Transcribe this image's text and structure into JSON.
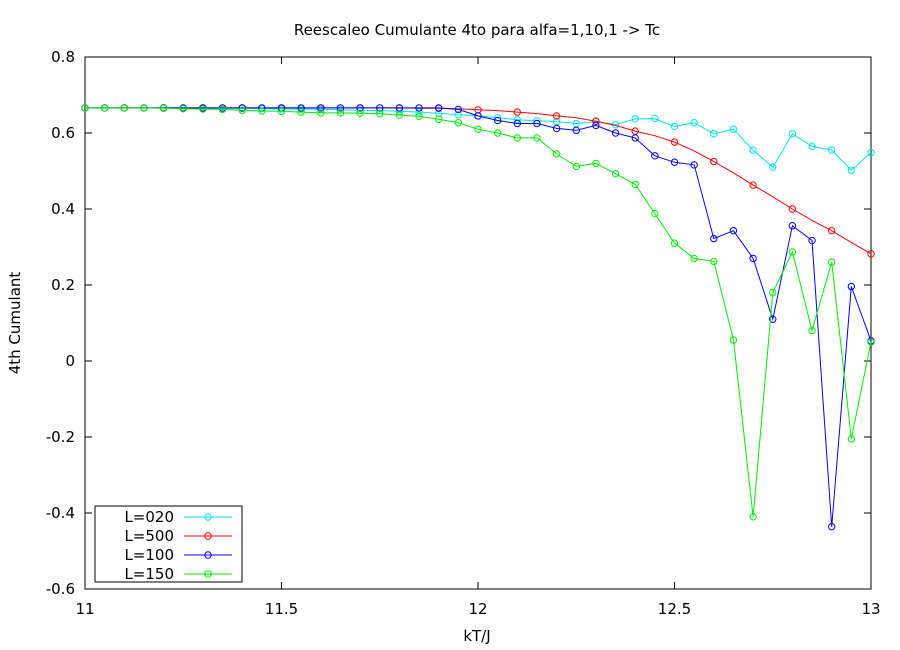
{
  "chart_data": {
    "type": "line",
    "title": "Reescaleo Cumulante 4to para alfa=1,10,1 -> Tc",
    "xlabel": "kT/J",
    "ylabel": "4th Cumulant",
    "xlim": [
      11,
      13
    ],
    "ylim": [
      -0.6,
      0.8
    ],
    "xticks": [
      "11",
      "11.5",
      "12",
      "12.5",
      "13"
    ],
    "yticks": [
      "0.8",
      "0.6",
      "0.4",
      "0.2",
      "0",
      "-0.2",
      "-0.4",
      "-0.6"
    ],
    "legend_position": "bottom-left",
    "x": [
      11.0,
      11.05,
      11.1,
      11.15,
      11.2,
      11.25,
      11.3,
      11.35,
      11.4,
      11.45,
      11.5,
      11.55,
      11.6,
      11.65,
      11.7,
      11.75,
      11.8,
      11.85,
      11.9,
      11.95,
      12.0,
      12.05,
      12.1,
      12.15,
      12.2,
      12.25,
      12.3,
      12.35,
      12.4,
      12.45,
      12.5,
      12.55,
      12.6,
      12.65,
      12.7,
      12.75,
      12.8,
      12.85,
      12.9,
      12.95,
      13.0
    ],
    "series": [
      {
        "name": "L=020",
        "color": "#00e5e5",
        "values": [
          0.666,
          0.666,
          0.666,
          0.666,
          0.666,
          0.666,
          0.665,
          0.665,
          0.665,
          0.664,
          0.663,
          0.663,
          0.662,
          0.661,
          0.66,
          0.659,
          0.657,
          0.655,
          0.652,
          0.648,
          0.645,
          0.64,
          0.635,
          0.632,
          0.63,
          0.625,
          0.63,
          0.622,
          0.637,
          0.638,
          0.617,
          0.627,
          0.598,
          0.61,
          0.555,
          0.51,
          0.598,
          0.565,
          0.555,
          0.502,
          0.548
        ],
        "sample_every": 1
      },
      {
        "name": "L=500",
        "color": "#ff0000",
        "values": [
          0.666,
          0.666,
          0.666,
          0.666,
          0.666,
          0.666,
          0.666,
          0.666,
          0.666,
          0.666,
          0.666,
          0.666,
          0.666,
          0.666,
          0.666,
          0.666,
          0.666,
          0.665,
          0.665,
          0.664,
          0.661,
          0.659,
          0.655,
          0.651,
          0.645,
          0.64,
          0.631,
          0.62,
          0.605,
          0.593,
          0.576,
          0.553,
          0.525,
          0.495,
          0.463,
          0.432,
          0.4,
          0.37,
          0.343,
          0.312,
          0.282
        ],
        "sample_every": 2
      },
      {
        "name": "L=100",
        "color": "#0000ff",
        "values": [
          0.666,
          0.666,
          0.666,
          0.666,
          0.666,
          0.666,
          0.666,
          0.666,
          0.666,
          0.666,
          0.666,
          0.666,
          0.666,
          0.666,
          0.666,
          0.666,
          0.666,
          0.666,
          0.666,
          0.662,
          0.645,
          0.633,
          0.625,
          0.625,
          0.612,
          0.607,
          0.62,
          0.6,
          0.587,
          0.54,
          0.523,
          0.516,
          0.322,
          0.343,
          0.27,
          0.11,
          0.356,
          0.317,
          -0.436,
          0.196,
          0.053
        ],
        "sample_every": 1
      },
      {
        "name": "L=150",
        "color": "#00ee00",
        "values": [
          0.666,
          0.666,
          0.666,
          0.666,
          0.665,
          0.664,
          0.663,
          0.662,
          0.66,
          0.658,
          0.657,
          0.655,
          0.653,
          0.653,
          0.652,
          0.651,
          0.647,
          0.644,
          0.636,
          0.627,
          0.61,
          0.6,
          0.587,
          0.587,
          0.545,
          0.512,
          0.52,
          0.493,
          0.465,
          0.388,
          0.31,
          0.27,
          0.262,
          0.055,
          -0.41,
          0.18,
          0.287,
          0.08,
          0.26,
          -0.205,
          0.05
        ],
        "sample_every": 1
      }
    ]
  }
}
